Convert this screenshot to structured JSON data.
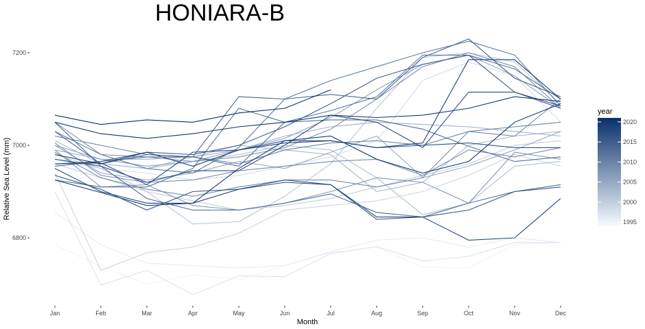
{
  "chart_data": {
    "type": "line",
    "title": "HONIARA-B",
    "xlabel": "Month",
    "ylabel": "Relative Sea Level (mm)",
    "categories": [
      "Jan",
      "Feb",
      "Mar",
      "Apr",
      "May",
      "Jun",
      "Jul",
      "Aug",
      "Sep",
      "Oct",
      "Nov",
      "Dec"
    ],
    "y_ticks": [
      6800,
      7000,
      7200
    ],
    "ylim": [
      6670,
      7240
    ],
    "grid": false,
    "legend": {
      "title": "year",
      "placement": "right",
      "type": "colorbar",
      "range": [
        1994,
        2021
      ],
      "ticks": [
        1995,
        2000,
        2005,
        2010,
        2015,
        2020
      ],
      "color_low": "#f7fbff",
      "color_high": "#08306b"
    },
    "series": [
      {
        "year": 1994,
        "values": [
          6960,
          6955,
          6950,
          6945,
          6940,
          6950,
          6945,
          null,
          null,
          null,
          null,
          null
        ]
      },
      {
        "year": 1995,
        "values": [
          6785,
          6738,
          6700,
          6720,
          6710,
          6740,
          6768,
          6780,
          6736,
          6735,
          6786,
          6790
        ]
      },
      {
        "year": 1996,
        "values": [
          6855,
          6785,
          6745,
          6740,
          6735,
          6740,
          6770,
          6795,
          6800,
          6780,
          6800,
          6790
        ]
      },
      {
        "year": 1997,
        "values": [
          6900,
          6698,
          6730,
          6677,
          6718,
          6716,
          6766,
          6781,
          6750,
          6760,
          6790,
          6790
        ]
      },
      {
        "year": 1998,
        "values": [
          6970,
          6950,
          6940,
          6925,
          6935,
          6955,
          6975,
          7010,
          7140,
          7180,
          7150,
          7050
        ]
      },
      {
        "year": 1999,
        "values": [
          6940,
          6730,
          6768,
          6780,
          6810,
          6860,
          6870,
          6880,
          6900,
          6935,
          6980,
          6955
        ]
      },
      {
        "year": 2000,
        "values": [
          6960,
          6930,
          6900,
          6880,
          6860,
          6870,
          6885,
          6910,
          6935,
          6960,
          7000,
          7010
        ]
      },
      {
        "year": 2001,
        "values": [
          6980,
          6950,
          6900,
          6830,
          6835,
          6890,
          6960,
          7080,
          7190,
          7200,
          7180,
          7090
        ]
      },
      {
        "year": 2002,
        "values": [
          6960,
          6960,
          6950,
          6965,
          6980,
          7000,
          6990,
          6930,
          6850,
          6875,
          6955,
          6965
        ]
      },
      {
        "year": 2003,
        "values": [
          7010,
          6960,
          6950,
          6975,
          7000,
          6990,
          6980,
          6900,
          6920,
          7000,
          7020,
          7030
        ]
      },
      {
        "year": 2004,
        "values": [
          6990,
          6970,
          6970,
          6975,
          6990,
          7020,
          7040,
          7050,
          7045,
          7040,
          7030,
          7020
        ]
      },
      {
        "year": 2005,
        "values": [
          7000,
          6940,
          6925,
          6940,
          6965,
          6950,
          6985,
          7020,
          6930,
          6955,
          6990,
          7030
        ]
      },
      {
        "year": 2006,
        "values": [
          7000,
          6970,
          6955,
          6965,
          6990,
          7015,
          7060,
          7120,
          7175,
          7195,
          7150,
          7080
        ]
      },
      {
        "year": 2007,
        "values": [
          6990,
          6910,
          6915,
          6870,
          6860,
          6875,
          6900,
          6930,
          6920,
          6875,
          6985,
          6970
        ]
      },
      {
        "year": 2008,
        "values": [
          7050,
          6980,
          6975,
          6965,
          6975,
          6995,
          7035,
          7100,
          7170,
          7200,
          7170,
          7080
        ]
      },
      {
        "year": 2009,
        "values": [
          6985,
          6930,
          6905,
          6890,
          6910,
          6925,
          6925,
          6910,
          6930,
          7030,
          7020,
          7100
        ]
      },
      {
        "year": 2010,
        "values": [
          7020,
          7000,
          6980,
          6975,
          6960,
          6990,
          7005,
          7010,
          7000,
          7030,
          7040,
          7050
        ]
      },
      {
        "year": 2011,
        "values": [
          7030,
          6980,
          6950,
          6940,
          6995,
          7100,
          7140,
          7170,
          7200,
          7225,
          7195,
          7085
        ]
      },
      {
        "year": 2012,
        "values": [
          6925,
          6910,
          6910,
          6950,
          7080,
          7050,
          7075,
          7105,
          7195,
          7195,
          7165,
          7100
        ]
      },
      {
        "year": 2013,
        "values": [
          7050,
          6955,
          6885,
          6860,
          6860,
          6875,
          6895,
          6855,
          6845,
          6875,
          6900,
          6915
        ]
      },
      {
        "year": 2014,
        "values": [
          7030,
          6960,
          6980,
          6975,
          7105,
          7100,
          7110,
          7100,
          7190,
          7230,
          7145,
          7105
        ]
      },
      {
        "year": 2015,
        "values": [
          6960,
          6965,
          6985,
          6980,
          7000,
          7040,
          7090,
          7145,
          7175,
          7195,
          7115,
          7080
        ]
      },
      {
        "year": 2016,
        "values": [
          6935,
          6905,
          6860,
          6900,
          6905,
          6925,
          6915,
          6840,
          6845,
          6860,
          6900,
          6910
        ]
      },
      {
        "year": 2017,
        "values": [
          6970,
          6955,
          6920,
          6945,
          6945,
          7000,
          7065,
          7050,
          6995,
          7115,
          7115,
          7085
        ]
      },
      {
        "year": 2018,
        "values": [
          6950,
          6900,
          6875,
          6875,
          6905,
          6920,
          6915,
          6845,
          6845,
          6795,
          6800,
          6885
        ]
      },
      {
        "year": 2019,
        "values": [
          6980,
          6960,
          6985,
          6955,
          6990,
          7005,
          7010,
          6995,
          7005,
          7185,
          7185,
          7100
        ]
      },
      {
        "year": 2020,
        "values": [
          7050,
          7025,
          7015,
          7025,
          7040,
          7050,
          7065,
          7060,
          7065,
          7080,
          7105,
          7095
        ]
      },
      {
        "year": 2021,
        "values": [
          7065,
          7045,
          7055,
          7050,
          7070,
          7080,
          7120,
          null,
          null,
          null,
          null,
          null
        ]
      },
      {
        "year": 2019.5,
        "values": [
          6925,
          6898,
          6870,
          6875,
          6950,
          7010,
          7020,
          6970,
          6940,
          6965,
          7050,
          7090
        ]
      },
      {
        "year": 2016.5,
        "values": [
          6960,
          6962,
          6915,
          6985,
          6990,
          7010,
          7010,
          6995,
          7000,
          7005,
          6995,
          6995
        ]
      },
      {
        "year": 2012.5,
        "values": [
          6955,
          6965,
          6975,
          6975,
          6955,
          7050,
          7055,
          7055,
          7035,
          6998,
          6965,
          6975
        ]
      },
      {
        "year": 2008.5,
        "values": [
          7005,
          6935,
          6920,
          6925,
          6945,
          6955,
          6965,
          6970,
          6935,
          6990,
          6975,
          6995
        ]
      }
    ]
  }
}
